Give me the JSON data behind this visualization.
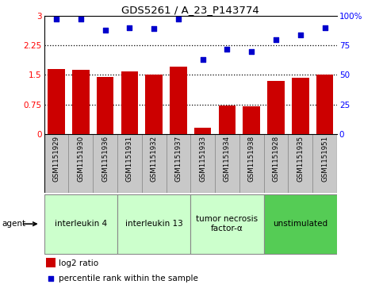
{
  "title": "GDS5261 / A_23_P143774",
  "samples": [
    "GSM1151929",
    "GSM1151930",
    "GSM1151936",
    "GSM1151931",
    "GSM1151932",
    "GSM1151937",
    "GSM1151933",
    "GSM1151934",
    "GSM1151938",
    "GSM1151928",
    "GSM1151935",
    "GSM1151951"
  ],
  "log2_ratio": [
    1.65,
    1.62,
    1.45,
    1.58,
    1.5,
    1.7,
    0.15,
    0.72,
    0.7,
    1.35,
    1.42,
    1.5
  ],
  "percentile_rank": [
    97,
    97,
    88,
    90,
    89,
    97,
    63,
    72,
    70,
    80,
    84,
    90
  ],
  "bar_color": "#cc0000",
  "dot_color": "#0000cc",
  "ylim_left": [
    0,
    3
  ],
  "ylim_right": [
    0,
    100
  ],
  "yticks_left": [
    0,
    0.75,
    1.5,
    2.25,
    3
  ],
  "ytick_labels_left": [
    "0",
    "0.75",
    "1.5",
    "2.25",
    "3"
  ],
  "yticks_right": [
    0,
    25,
    50,
    75,
    100
  ],
  "ytick_labels_right": [
    "0",
    "25",
    "50",
    "75",
    "100%"
  ],
  "groups": [
    {
      "label": "interleukin 4",
      "start": 0,
      "end": 3,
      "color": "#ccffcc",
      "edge": "#888888"
    },
    {
      "label": "interleukin 13",
      "start": 3,
      "end": 6,
      "color": "#ccffcc",
      "edge": "#888888"
    },
    {
      "label": "tumor necrosis\nfactor-α",
      "start": 6,
      "end": 9,
      "color": "#ccffcc",
      "edge": "#888888"
    },
    {
      "label": "unstimulated",
      "start": 9,
      "end": 12,
      "color": "#55cc55",
      "edge": "#888888"
    }
  ],
  "tick_area_bg": "#c8c8c8",
  "tick_area_edge": "#888888",
  "agent_label": "agent",
  "legend_bar_label": "log2 ratio",
  "legend_dot_label": "percentile rank within the sample",
  "dotted_yticks": [
    0.75,
    1.5,
    2.25
  ]
}
